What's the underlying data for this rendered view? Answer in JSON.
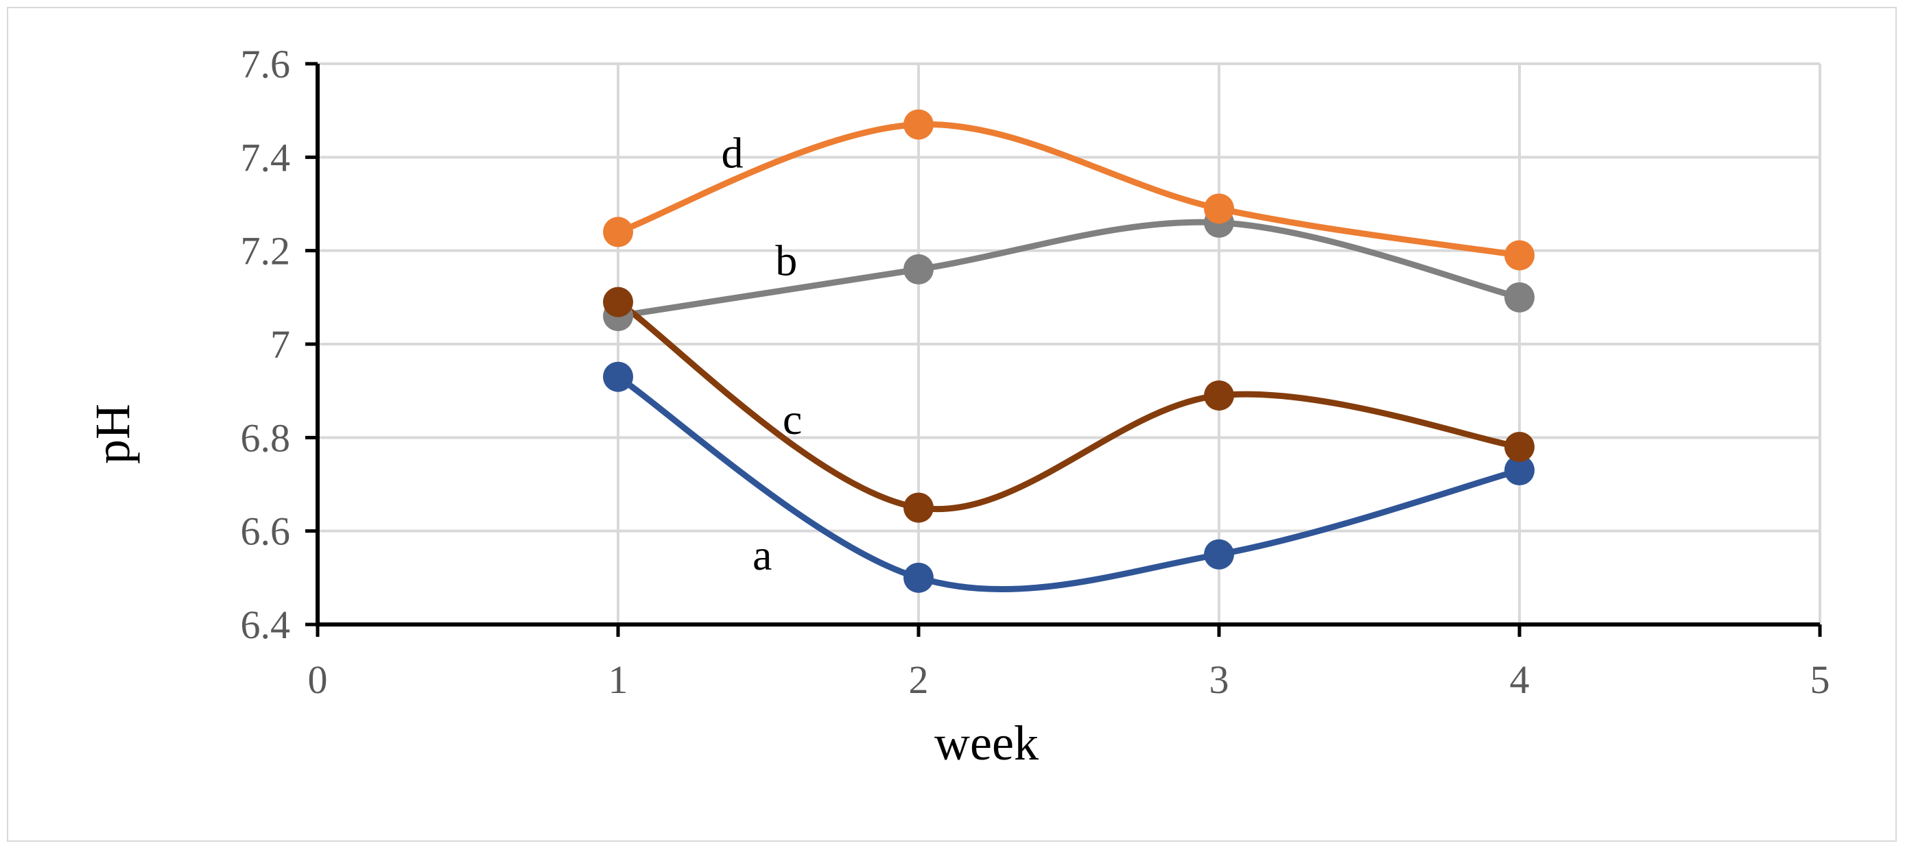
{
  "chart_data": {
    "type": "line",
    "title": "",
    "xlabel": "week",
    "ylabel": "pH",
    "xlim": [
      0,
      5
    ],
    "ylim": [
      6.4,
      7.6
    ],
    "x_ticks": [
      "0",
      "1",
      "2",
      "3",
      "4",
      "5"
    ],
    "y_ticks": [
      "6.4",
      "6.6",
      "6.8",
      "7",
      "7.2",
      "7.4",
      "7.6"
    ],
    "grid": true,
    "x": [
      1,
      2,
      3,
      4
    ],
    "series": [
      {
        "name": "a",
        "color": "#2f5597",
        "values": [
          6.93,
          6.5,
          6.55,
          6.73
        ]
      },
      {
        "name": "b",
        "color": "#808080",
        "values": [
          7.06,
          7.16,
          7.26,
          7.1
        ]
      },
      {
        "name": "c",
        "color": "#843c0c",
        "values": [
          7.09,
          6.65,
          6.89,
          6.78
        ]
      },
      {
        "name": "d",
        "color": "#ed7d31",
        "values": [
          7.24,
          7.47,
          7.29,
          7.19
        ]
      }
    ],
    "series_label_positions": [
      {
        "name": "a",
        "x": 1.48,
        "y": 6.55
      },
      {
        "name": "b",
        "x": 1.56,
        "y": 7.18
      },
      {
        "name": "c",
        "x": 1.58,
        "y": 6.84
      },
      {
        "name": "d",
        "x": 1.38,
        "y": 7.41
      }
    ]
  }
}
